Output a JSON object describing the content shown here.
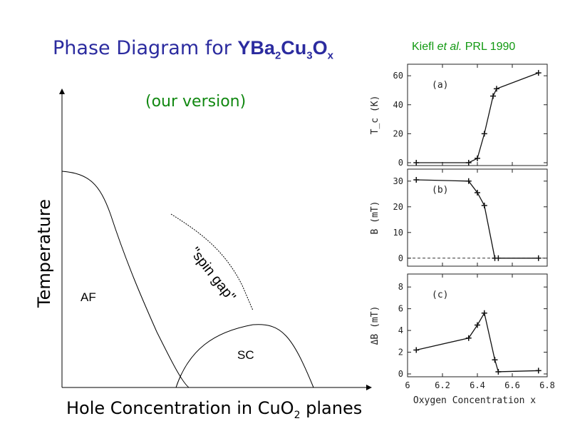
{
  "title": {
    "prefix": "Phase Diagram for ",
    "formula": [
      "YBa",
      "2",
      "Cu",
      "3",
      "O",
      "x"
    ]
  },
  "subtitle": "(our version)",
  "citation": {
    "authors": "Kiefl ",
    "etal": "et al.",
    "journal": "  PRL 1990"
  },
  "schematic": {
    "xlabel": {
      "text": "Hole Concentration in CuO",
      "sub": "2",
      "tail": " planes"
    },
    "ylabel": "Temperature",
    "regions": {
      "af": "AF",
      "sc": "SC",
      "spin_gap": "\"spin gap\""
    }
  },
  "chart_data": [
    {
      "type": "line",
      "panel_label": "(a)",
      "ylabel": "T_c (K)",
      "xlim": [
        6.0,
        6.8
      ],
      "ylim": [
        0,
        65
      ],
      "yticks": [
        "60",
        "40",
        "20",
        "0"
      ],
      "x": [
        6.05,
        6.35,
        6.4,
        6.44,
        6.49,
        6.51,
        6.75
      ],
      "y": [
        0,
        0,
        3,
        20,
        46,
        51,
        62
      ]
    },
    {
      "type": "line",
      "panel_label": "(b)",
      "ylabel": "B (mT)",
      "xlim": [
        6.0,
        6.8
      ],
      "ylim": [
        -2,
        33
      ],
      "yticks": [
        "30",
        "20",
        "10",
        "0"
      ],
      "x": [
        6.05,
        6.35,
        6.4,
        6.44,
        6.5,
        6.52,
        6.75
      ],
      "y": [
        30.5,
        30,
        25.5,
        20.5,
        0,
        0,
        0
      ],
      "reference_line": 0
    },
    {
      "type": "line",
      "panel_label": "(c)",
      "ylabel": "ΔB (mT)",
      "xlim": [
        6.0,
        6.8
      ],
      "ylim": [
        0,
        8.8
      ],
      "yticks": [
        "8",
        "6",
        "4",
        "2",
        "0"
      ],
      "xticks": [
        "6",
        "6.2",
        "6.4",
        "6.6",
        "6.8"
      ],
      "xlabel": "Oxygen Concentration x",
      "x": [
        6.05,
        6.35,
        6.4,
        6.44,
        6.5,
        6.52,
        6.75
      ],
      "y": [
        2.2,
        3.3,
        4.5,
        5.6,
        1.3,
        0.2,
        0.3
      ]
    }
  ]
}
